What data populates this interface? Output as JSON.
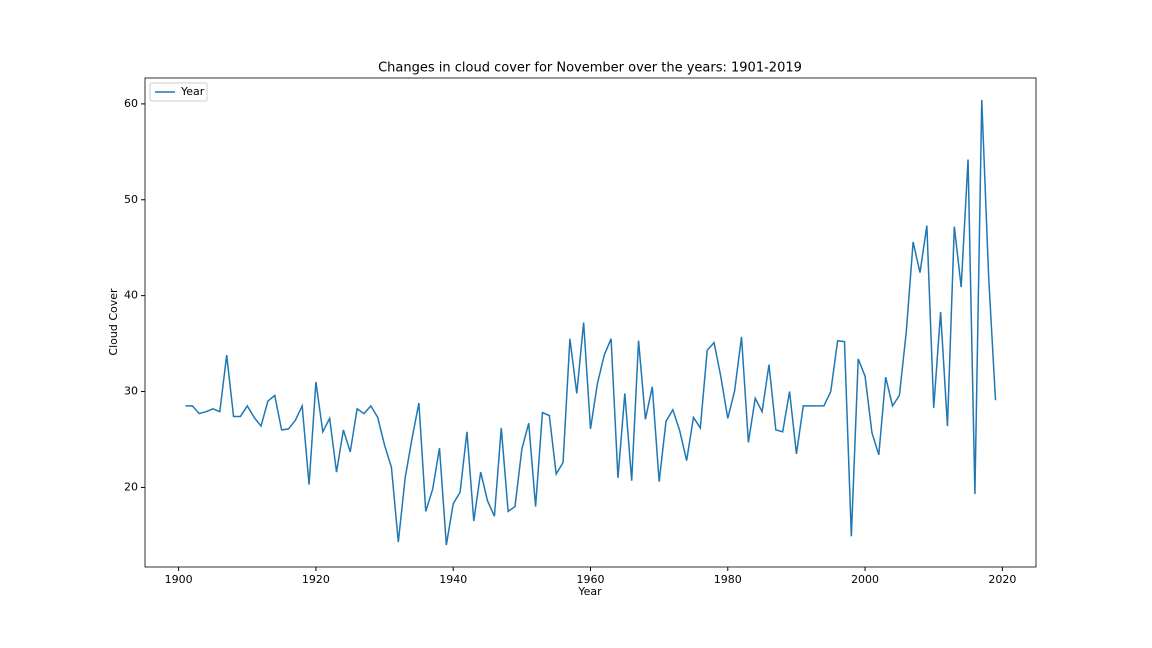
{
  "chart_data": {
    "type": "line",
    "title": "Changes in cloud cover for November over the years: 1901-2019",
    "x_label": "Year",
    "y_label": "Cloud Cover",
    "x": [
      1901,
      1902,
      1903,
      1904,
      1905,
      1906,
      1907,
      1908,
      1909,
      1910,
      1911,
      1912,
      1913,
      1914,
      1915,
      1916,
      1917,
      1918,
      1919,
      1920,
      1921,
      1922,
      1923,
      1924,
      1925,
      1926,
      1927,
      1928,
      1929,
      1930,
      1931,
      1932,
      1933,
      1934,
      1935,
      1936,
      1937,
      1938,
      1939,
      1940,
      1941,
      1942,
      1943,
      1944,
      1945,
      1946,
      1947,
      1948,
      1949,
      1950,
      1951,
      1952,
      1953,
      1954,
      1955,
      1956,
      1957,
      1958,
      1959,
      1960,
      1961,
      1962,
      1963,
      1964,
      1965,
      1966,
      1967,
      1968,
      1969,
      1970,
      1971,
      1972,
      1973,
      1974,
      1975,
      1976,
      1977,
      1978,
      1979,
      1980,
      1981,
      1982,
      1983,
      1984,
      1985,
      1986,
      1987,
      1988,
      1989,
      1990,
      1991,
      1992,
      1993,
      1994,
      1995,
      1996,
      1997,
      1998,
      1999,
      2000,
      2001,
      2002,
      2003,
      2004,
      2005,
      2006,
      2007,
      2008,
      2009,
      2010,
      2011,
      2012,
      2013,
      2014,
      2015,
      2016,
      2017,
      2018,
      2019
    ],
    "series": [
      {
        "name": "Year",
        "color": "#1f77b4",
        "values": [
          28.5,
          28.5,
          27.7,
          27.9,
          28.2,
          27.9,
          33.8,
          27.4,
          27.4,
          28.5,
          27.3,
          26.4,
          29.0,
          29.6,
          26.0,
          26.1,
          27.0,
          28.5,
          20.3,
          31.0,
          25.8,
          27.2,
          21.6,
          26.0,
          23.7,
          28.2,
          27.7,
          28.5,
          27.3,
          24.4,
          22.1,
          14.3,
          21.0,
          25.1,
          28.8,
          17.5,
          19.8,
          24.1,
          14.0,
          18.3,
          19.5,
          25.8,
          16.5,
          21.6,
          18.6,
          17.0,
          26.2,
          17.5,
          18.0,
          24.0,
          26.7,
          18.0,
          27.8,
          27.5,
          21.4,
          22.6,
          35.5,
          29.8,
          37.2,
          26.1,
          30.8,
          33.8,
          35.5,
          21.0,
          29.8,
          20.7,
          35.3,
          27.1,
          30.5,
          20.6,
          26.9,
          28.1,
          25.9,
          22.8,
          27.3,
          26.2,
          34.3,
          35.1,
          31.5,
          27.2,
          30.1,
          35.7,
          24.7,
          29.3,
          27.9,
          32.8,
          26.0,
          25.8,
          30.0,
          23.5,
          28.5,
          28.5,
          28.5,
          28.5,
          30.0,
          35.3,
          35.2,
          14.9,
          33.4,
          31.6,
          25.7,
          23.4,
          31.5,
          28.5,
          29.6,
          36.2,
          45.6,
          42.4,
          47.3,
          28.3,
          38.3,
          26.4,
          47.2,
          40.9,
          54.2,
          19.3,
          60.4,
          42.0,
          29.1
        ]
      }
    ],
    "xlim": [
      1895.1,
      2024.9
    ],
    "ylim": [
      11.7,
      62.7
    ],
    "xticks": [
      1900,
      1920,
      1940,
      1960,
      1980,
      2000,
      2020
    ],
    "yticks": [
      20,
      30,
      40,
      50,
      60
    ],
    "legend": "upper left"
  }
}
